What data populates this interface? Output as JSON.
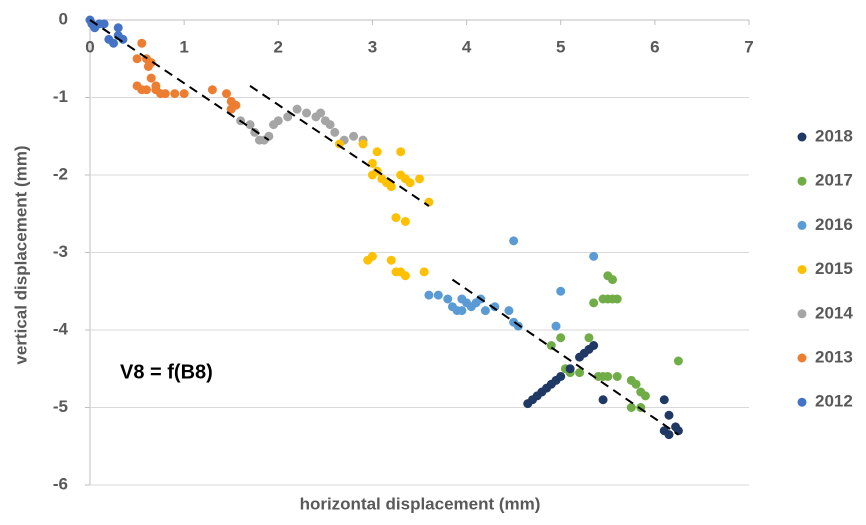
{
  "chart_data": {
    "type": "scatter",
    "x_label": "horizontal displacement (mm)",
    "y_label": "vertical displacement (mm)",
    "annotation": "V8 = f(B8)",
    "xlim": [
      0,
      7
    ],
    "xticks": [
      0,
      1,
      2,
      3,
      4,
      5,
      6,
      7
    ],
    "ylim": [
      -6,
      0
    ],
    "yticks": [
      -6,
      -5,
      -4,
      -3,
      -2,
      -1,
      0
    ],
    "grid": true,
    "legend": "right",
    "series": [
      {
        "name": "2018",
        "color": "#1f3864",
        "x": [
          4.65,
          4.7,
          4.75,
          4.8,
          4.85,
          4.9,
          4.95,
          5.0,
          5.1,
          5.2,
          5.25,
          5.3,
          5.35,
          5.45,
          6.1,
          6.15,
          6.15,
          6.25,
          6.22,
          6.1
        ],
        "values": [
          -4.95,
          -4.9,
          -4.85,
          -4.8,
          -4.75,
          -4.7,
          -4.65,
          -4.6,
          -4.5,
          -4.35,
          -4.3,
          -4.25,
          -4.2,
          -4.9,
          -4.9,
          -5.1,
          -5.35,
          -5.3,
          -5.25,
          -5.3
        ]
      },
      {
        "name": "2017",
        "color": "#70ad47",
        "x": [
          4.9,
          5.0,
          5.05,
          5.1,
          5.2,
          5.3,
          5.4,
          5.45,
          5.5,
          5.35,
          5.45,
          5.5,
          5.55,
          5.6,
          5.5,
          5.55,
          5.75,
          5.8,
          5.85,
          5.9,
          5.85,
          5.75,
          6.25,
          5.6
        ],
        "values": [
          -4.2,
          -4.1,
          -4.5,
          -4.55,
          -4.55,
          -4.1,
          -4.6,
          -4.6,
          -4.6,
          -3.65,
          -3.6,
          -3.6,
          -3.6,
          -3.6,
          -3.3,
          -3.35,
          -4.65,
          -4.7,
          -4.8,
          -4.85,
          -5.0,
          -5.0,
          -4.4,
          -4.6
        ]
      },
      {
        "name": "2016",
        "color": "#5b9bd5",
        "x": [
          3.6,
          3.7,
          3.8,
          3.85,
          3.9,
          3.95,
          4.0,
          4.05,
          4.15,
          4.2,
          4.3,
          4.45,
          4.5,
          4.55,
          4.5,
          4.95,
          5.0,
          5.35,
          3.95,
          4.1
        ],
        "values": [
          -3.55,
          -3.55,
          -3.6,
          -3.7,
          -3.75,
          -3.6,
          -3.65,
          -3.7,
          -3.6,
          -3.75,
          -3.7,
          -3.75,
          -3.9,
          -3.95,
          -2.85,
          -3.95,
          -3.5,
          -3.05,
          -3.75,
          -3.65
        ]
      },
      {
        "name": "2015",
        "color": "#ffc000",
        "x": [
          2.65,
          2.9,
          3.0,
          3.05,
          3.0,
          3.1,
          3.15,
          3.2,
          3.3,
          3.35,
          3.4,
          3.5,
          3.6,
          3.3,
          3.25,
          3.35,
          3.0,
          2.95,
          3.2,
          3.25,
          3.3,
          3.35,
          3.55,
          3.05
        ],
        "values": [
          -1.6,
          -1.6,
          -1.85,
          -1.95,
          -2.0,
          -2.05,
          -2.1,
          -2.15,
          -2.0,
          -2.05,
          -2.1,
          -2.05,
          -2.35,
          -1.7,
          -2.55,
          -2.6,
          -3.05,
          -3.1,
          -3.1,
          -3.25,
          -3.25,
          -3.3,
          -3.25,
          -1.7
        ]
      },
      {
        "name": "2014",
        "color": "#a5a5a5",
        "x": [
          1.6,
          1.7,
          1.75,
          1.8,
          1.85,
          1.9,
          2.0,
          2.1,
          2.2,
          2.3,
          2.4,
          2.5,
          2.55,
          2.6,
          2.7,
          2.8,
          2.9,
          2.45,
          1.95
        ],
        "values": [
          -1.3,
          -1.35,
          -1.45,
          -1.55,
          -1.55,
          -1.5,
          -1.3,
          -1.25,
          -1.15,
          -1.2,
          -1.25,
          -1.3,
          -1.35,
          -1.45,
          -1.55,
          -1.5,
          -1.55,
          -1.2,
          -1.35
        ]
      },
      {
        "name": "2013",
        "color": "#ed7d31",
        "x": [
          0.5,
          0.55,
          0.6,
          0.62,
          0.65,
          0.7,
          0.55,
          0.6,
          0.7,
          0.8,
          0.9,
          1.0,
          0.75,
          1.3,
          1.45,
          1.5,
          1.5,
          1.55,
          0.65,
          0.5
        ],
        "values": [
          -0.5,
          -0.3,
          -0.5,
          -0.6,
          -0.75,
          -0.85,
          -0.9,
          -0.9,
          -0.9,
          -0.95,
          -0.95,
          -0.95,
          -0.95,
          -0.9,
          -0.95,
          -1.05,
          -1.15,
          -1.1,
          -0.55,
          -0.85
        ]
      },
      {
        "name": "2012",
        "color": "#4472c4",
        "x": [
          0.0,
          0.02,
          0.05,
          0.15,
          0.2,
          0.25,
          0.3,
          0.3,
          0.35,
          0.1
        ],
        "values": [
          0.0,
          -0.05,
          -0.1,
          -0.05,
          -0.25,
          -0.3,
          -0.1,
          -0.2,
          -0.25,
          -0.05
        ]
      }
    ],
    "trend_lines": [
      {
        "x": [
          0.0,
          1.9
        ],
        "values": [
          0.0,
          -1.55
        ]
      },
      {
        "x": [
          1.7,
          3.6
        ],
        "values": [
          -0.85,
          -2.4
        ]
      },
      {
        "x": [
          3.85,
          6.25
        ],
        "values": [
          -3.35,
          -5.35
        ]
      }
    ]
  }
}
